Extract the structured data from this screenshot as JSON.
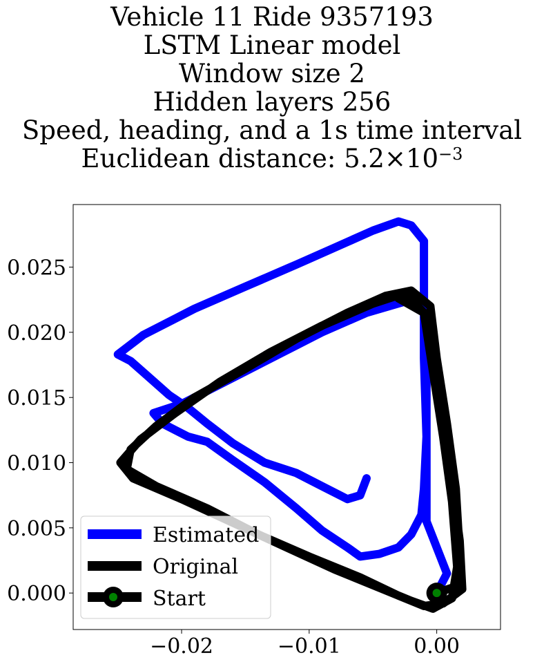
{
  "title": {
    "line1": "Vehicle 11 Ride 9357193",
    "line2": "LSTM Linear model",
    "line3": "Window size 2",
    "line4": "Hidden layers 256",
    "line5": "Speed, heading, and a 1s time interval",
    "line6_prefix": "Euclidean distance: 5.2×10",
    "line6_exponent": "−3"
  },
  "chart_data": {
    "type": "line",
    "xlim": [
      -0.0285,
      0.005
    ],
    "ylim": [
      -0.0028,
      0.0298
    ],
    "xticks": [
      {
        "value": -0.02,
        "label": "−0.02"
      },
      {
        "value": -0.01,
        "label": "−0.01"
      },
      {
        "value": 0.0,
        "label": "0.00"
      }
    ],
    "yticks": [
      {
        "value": 0.0,
        "label": "0.000"
      },
      {
        "value": 0.005,
        "label": "0.005"
      },
      {
        "value": 0.01,
        "label": "0.010"
      },
      {
        "value": 0.015,
        "label": "0.015"
      },
      {
        "value": 0.02,
        "label": "0.020"
      },
      {
        "value": 0.025,
        "label": "0.025"
      }
    ],
    "grid": false,
    "legend_position": "lower-left",
    "series": [
      {
        "name": "Estimated",
        "color": "#0000ff",
        "points": [
          [
            0.0,
            0.0
          ],
          [
            0.0008,
            0.0015
          ],
          [
            0.0,
            0.0035
          ],
          [
            -0.0008,
            0.0055
          ],
          [
            -0.0008,
            0.0075
          ],
          [
            -0.0008,
            0.011
          ],
          [
            -0.0008,
            0.015
          ],
          [
            -0.0008,
            0.0185
          ],
          [
            -0.001,
            0.0215
          ],
          [
            -0.002,
            0.0225
          ],
          [
            -0.0055,
            0.0215
          ],
          [
            -0.009,
            0.02
          ],
          [
            -0.012,
            0.0185
          ],
          [
            -0.015,
            0.017
          ],
          [
            -0.018,
            0.0155
          ],
          [
            -0.02,
            0.0145
          ],
          [
            -0.0222,
            0.0138
          ],
          [
            -0.0215,
            0.013
          ],
          [
            -0.0195,
            0.012
          ],
          [
            -0.018,
            0.0116
          ],
          [
            -0.016,
            0.0102
          ],
          [
            -0.0135,
            0.0085
          ],
          [
            -0.011,
            0.0065
          ],
          [
            -0.009,
            0.0048
          ],
          [
            -0.007,
            0.0035
          ],
          [
            -0.006,
            0.0028
          ],
          [
            -0.0045,
            0.003
          ],
          [
            -0.003,
            0.0035
          ],
          [
            -0.002,
            0.0045
          ],
          [
            -0.0012,
            0.006
          ],
          [
            -0.001,
            0.008
          ],
          [
            -0.0008,
            0.012
          ],
          [
            -0.001,
            0.018
          ],
          [
            -0.001,
            0.022
          ],
          [
            -0.001,
            0.027
          ],
          [
            -0.002,
            0.0282
          ],
          [
            -0.003,
            0.0285
          ],
          [
            -0.005,
            0.0278
          ],
          [
            -0.008,
            0.0265
          ],
          [
            -0.011,
            0.0252
          ],
          [
            -0.015,
            0.0235
          ],
          [
            -0.019,
            0.0218
          ],
          [
            -0.023,
            0.0198
          ],
          [
            -0.025,
            0.0183
          ],
          [
            -0.024,
            0.0178
          ],
          [
            -0.0225,
            0.0165
          ],
          [
            -0.021,
            0.0152
          ],
          [
            -0.0195,
            0.0142
          ],
          [
            -0.018,
            0.013
          ],
          [
            -0.016,
            0.0115
          ],
          [
            -0.0135,
            0.01
          ],
          [
            -0.011,
            0.0092
          ],
          [
            -0.009,
            0.0082
          ],
          [
            -0.007,
            0.0072
          ],
          [
            -0.006,
            0.0075
          ],
          [
            -0.0055,
            0.0088
          ]
        ]
      },
      {
        "name": "Original",
        "color": "#000000",
        "points": [
          [
            0.0,
            0.0
          ],
          [
            0.0015,
            0.0005
          ],
          [
            0.0018,
            0.003
          ],
          [
            0.0015,
            0.008
          ],
          [
            0.0008,
            0.013
          ],
          [
            0.0,
            0.018
          ],
          [
            -0.0005,
            0.022
          ],
          [
            -0.002,
            0.0232
          ],
          [
            -0.004,
            0.0228
          ],
          [
            -0.007,
            0.0215
          ],
          [
            -0.011,
            0.0195
          ],
          [
            -0.015,
            0.0172
          ],
          [
            -0.019,
            0.015
          ],
          [
            -0.022,
            0.0128
          ],
          [
            -0.024,
            0.011
          ],
          [
            -0.0243,
            0.0095
          ],
          [
            -0.022,
            0.0082
          ],
          [
            -0.018,
            0.0065
          ],
          [
            -0.014,
            0.0045
          ],
          [
            -0.01,
            0.0028
          ],
          [
            -0.006,
            0.0012
          ],
          [
            -0.003,
            -0.0002
          ],
          [
            -0.001,
            -0.001
          ],
          [
            0.0005,
            -0.0008
          ],
          [
            0.002,
            0.0003
          ],
          [
            0.0018,
            0.004
          ],
          [
            0.001,
            0.01
          ],
          [
            0.0003,
            0.016
          ],
          [
            -0.0005,
            0.021
          ],
          [
            -0.0025,
            0.023
          ],
          [
            -0.005,
            0.0222
          ],
          [
            -0.009,
            0.0205
          ],
          [
            -0.013,
            0.0185
          ],
          [
            -0.017,
            0.0162
          ],
          [
            -0.0205,
            0.0138
          ],
          [
            -0.0232,
            0.0118
          ],
          [
            -0.0248,
            0.01
          ],
          [
            -0.0238,
            0.0088
          ],
          [
            -0.02,
            0.0072
          ],
          [
            -0.016,
            0.0054
          ],
          [
            -0.012,
            0.0036
          ],
          [
            -0.008,
            0.0018
          ],
          [
            -0.0045,
            0.0004
          ],
          [
            -0.002,
            -0.0006
          ],
          [
            -0.0003,
            -0.0012
          ],
          [
            0.0012,
            -0.0004
          ],
          [
            0.0016,
            0.002
          ],
          [
            0.0012,
            0.007
          ],
          [
            0.0005,
            0.012
          ],
          [
            -0.0003,
            0.017
          ],
          [
            -0.001,
            0.0215
          ],
          [
            -0.003,
            0.0226
          ]
        ]
      }
    ],
    "start": {
      "name": "Start",
      "x": 0.0,
      "y": 0.0,
      "marker_color": "#008000",
      "edge_color": "#000000"
    }
  }
}
